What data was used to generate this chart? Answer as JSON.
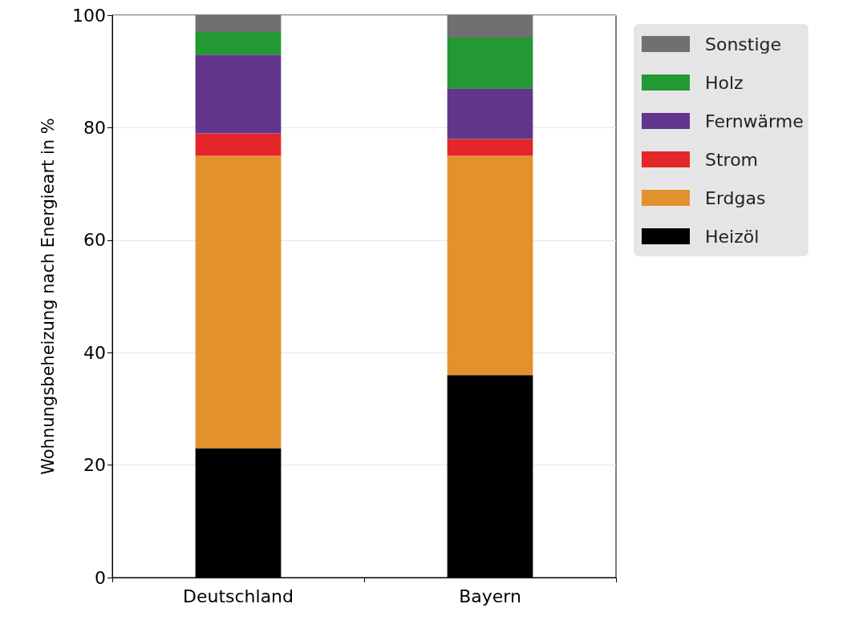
{
  "chart_data": {
    "type": "bar",
    "stacked": true,
    "ylabel": "Wohnungsbeheizung nach Energieart in %",
    "categories": [
      "Deutschland",
      "Bayern"
    ],
    "series": [
      {
        "name": "Heizöl",
        "color": "#000000",
        "values": [
          23,
          36
        ]
      },
      {
        "name": "Erdgas",
        "color": "#e3912d",
        "values": [
          52,
          39
        ]
      },
      {
        "name": "Strom",
        "color": "#e3262a",
        "values": [
          4,
          3
        ]
      },
      {
        "name": "Fernwärme",
        "color": "#61368c",
        "values": [
          14,
          9
        ]
      },
      {
        "name": "Holz",
        "color": "#229933",
        "values": [
          4,
          9
        ]
      },
      {
        "name": "Sonstige",
        "color": "#707070",
        "values": [
          3,
          4
        ]
      }
    ],
    "ylim": [
      0,
      100
    ],
    "yticks": [
      0,
      20,
      40,
      60,
      80,
      100
    ],
    "grid": "y",
    "legend": "top right"
  }
}
